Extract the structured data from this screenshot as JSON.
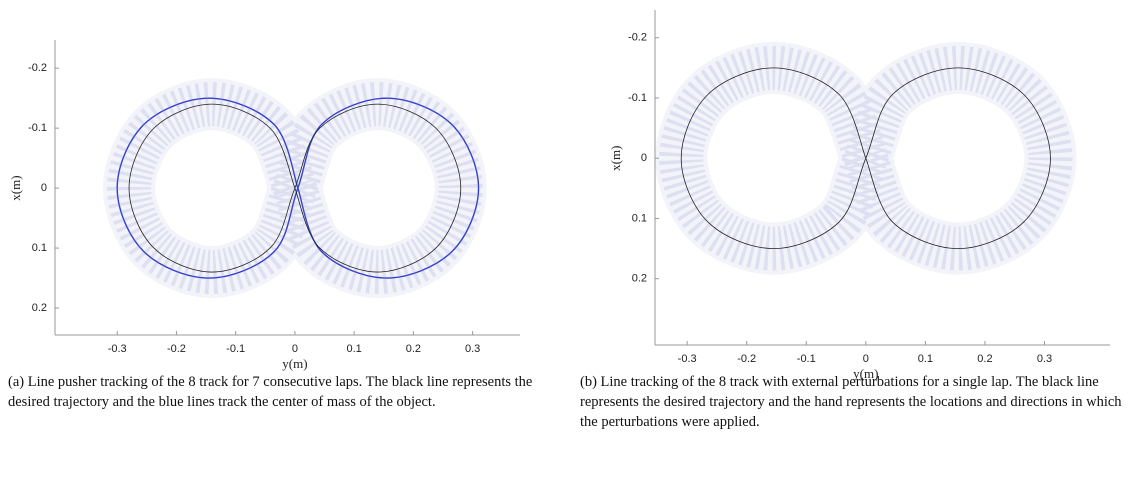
{
  "chart_data": [
    {
      "type": "line",
      "xlabel": "y(m)",
      "ylabel": "x(m)",
      "xlim": [
        -0.405,
        0.38
      ],
      "ylim": [
        0.245,
        -0.247
      ],
      "xticks": [
        -0.3,
        -0.2,
        -0.1,
        0,
        0.1,
        0.2,
        0.3
      ],
      "yticks": [
        -0.2,
        -0.1,
        0,
        0.1,
        0.2
      ],
      "series": [
        {
          "color": "#1f2fd0",
          "x": [
            0.005,
            -0.035,
            -0.145,
            -0.255,
            -0.3,
            -0.255,
            -0.145,
            -0.035,
            0.005,
            0.045,
            0.155,
            0.265,
            0.31,
            0.265,
            0.155,
            0.045,
            0.005
          ],
          "values": [
            0,
            -0.106,
            -0.15,
            -0.106,
            0,
            0.106,
            0.15,
            0.106,
            0,
            -0.106,
            -0.15,
            -0.106,
            0,
            0.106,
            0.15,
            0.106,
            0
          ]
        },
        {
          "color": "#222222",
          "x": [
            0,
            -0.041,
            -0.14,
            -0.239,
            -0.28,
            -0.239,
            -0.14,
            -0.041,
            0,
            0.041,
            0.14,
            0.239,
            0.28,
            0.239,
            0.14,
            0.041,
            0
          ],
          "values": [
            0,
            -0.099,
            -0.14,
            -0.099,
            0,
            0.099,
            0.14,
            0.099,
            0,
            -0.099,
            -0.14,
            -0.099,
            0,
            0.099,
            0.14,
            0.099,
            0
          ]
        }
      ],
      "caption": "(a) Line pusher tracking of the 8 track for 7 consecutive laps. The black line represents the desired trajectory and the blue lines track the center of mass of the object."
    },
    {
      "type": "line",
      "xlabel": "y(m)",
      "ylabel": "x(m)",
      "xlim": [
        -0.354,
        0.41
      ],
      "ylim": [
        0.31,
        -0.246
      ],
      "xticks": [
        -0.3,
        -0.2,
        -0.1,
        0,
        0.1,
        0.2,
        0.3
      ],
      "yticks": [
        -0.2,
        -0.1,
        0,
        0.1,
        0.2
      ],
      "series": [
        {
          "color": "#222222",
          "x": [
            0,
            -0.045,
            -0.155,
            -0.265,
            -0.31,
            -0.265,
            -0.155,
            -0.045,
            0,
            0.045,
            0.155,
            0.265,
            0.31,
            0.265,
            0.155,
            0.045,
            0
          ],
          "values": [
            0,
            -0.106,
            -0.15,
            -0.106,
            0,
            0.106,
            0.15,
            0.106,
            0,
            -0.106,
            -0.15,
            -0.106,
            0,
            0.106,
            0.15,
            0.106,
            0
          ]
        }
      ],
      "caption": "(b) Line tracking of the 8 track with external perturbations for a single lap. The black line represents the desired trajectory and the hand represents the locations and directions in which the perturbations were applied."
    }
  ]
}
